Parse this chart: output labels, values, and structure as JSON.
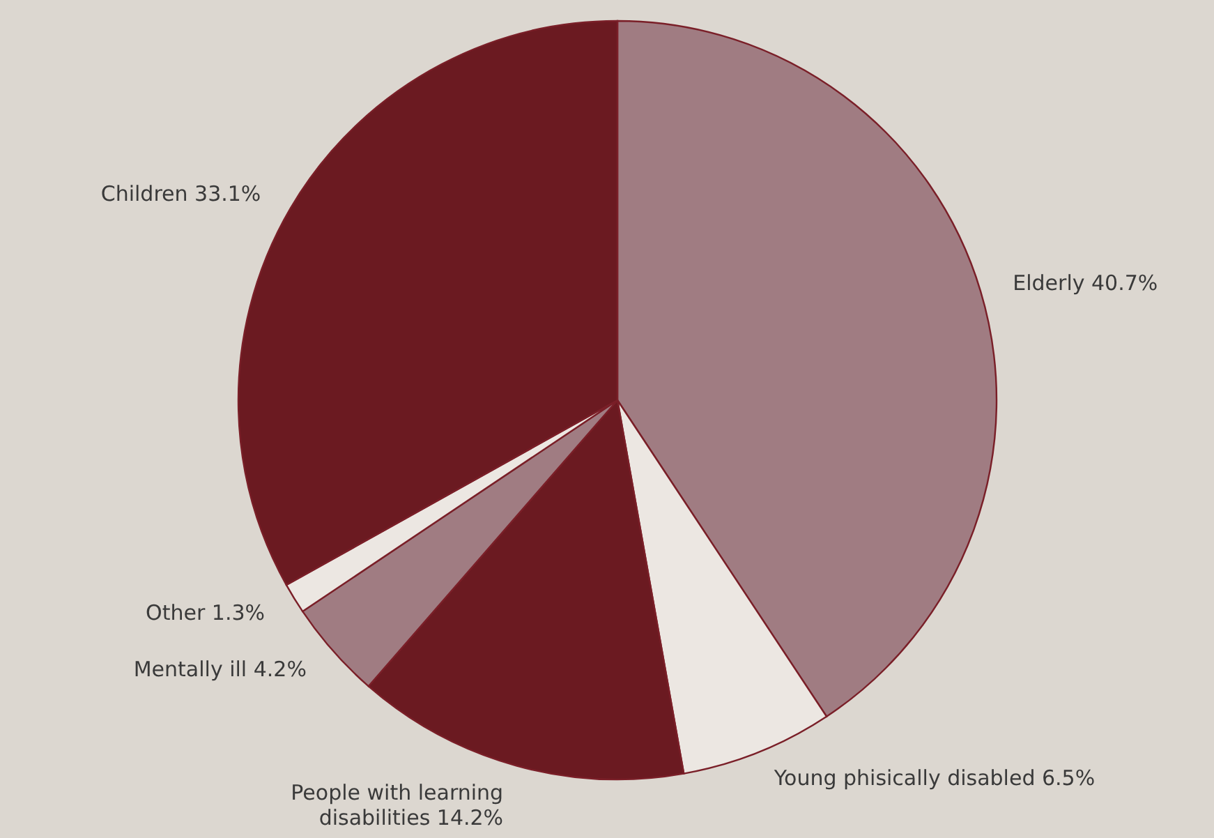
{
  "chart_data": {
    "type": "pie",
    "categories": [
      "Elderly",
      "Young phisically disabled",
      "People with learning disabilities",
      "Mentally ill",
      "Other",
      "Children"
    ],
    "values": [
      40.7,
      6.5,
      14.2,
      4.2,
      1.3,
      33.1
    ],
    "value_labels": [
      "40.7%",
      "6.5%",
      "14.2%",
      "4.2%",
      "1.3%",
      "33.1%"
    ],
    "colors": [
      "#a07c82",
      "#ece7e2",
      "#6b1a21",
      "#a07c82",
      "#ece7e2",
      "#6b1a21"
    ]
  }
}
